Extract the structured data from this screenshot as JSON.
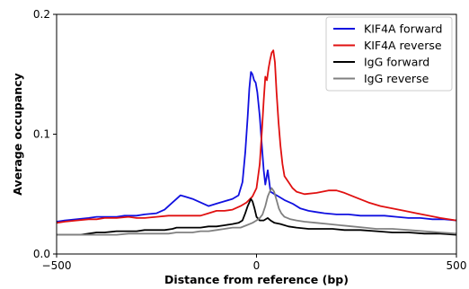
{
  "chart_data": {
    "type": "line",
    "title": "",
    "xlabel": "Distance from reference (bp)",
    "ylabel": "Average occupancy",
    "xlim": [
      -500,
      500
    ],
    "ylim": [
      0,
      0.2
    ],
    "x_ticks": [
      -500,
      0,
      500
    ],
    "x_tick_labels": [
      "−500",
      "0",
      "500"
    ],
    "y_ticks": [
      0,
      0.1,
      0.2
    ],
    "y_tick_labels": [
      "0.0",
      "0.1",
      "0.2"
    ],
    "grid": false,
    "legend_position": "top-right",
    "series": [
      {
        "name": "KIF4A forward",
        "color": "#1010e0",
        "points": [
          [
            -500,
            0.027
          ],
          [
            -480,
            0.028
          ],
          [
            -450,
            0.029
          ],
          [
            -420,
            0.03
          ],
          [
            -400,
            0.031
          ],
          [
            -380,
            0.031
          ],
          [
            -350,
            0.031
          ],
          [
            -330,
            0.032
          ],
          [
            -300,
            0.032
          ],
          [
            -280,
            0.033
          ],
          [
            -250,
            0.034
          ],
          [
            -230,
            0.037
          ],
          [
            -210,
            0.043
          ],
          [
            -200,
            0.046
          ],
          [
            -190,
            0.049
          ],
          [
            -180,
            0.048
          ],
          [
            -160,
            0.046
          ],
          [
            -140,
            0.043
          ],
          [
            -120,
            0.04
          ],
          [
            -100,
            0.042
          ],
          [
            -80,
            0.044
          ],
          [
            -60,
            0.046
          ],
          [
            -45,
            0.049
          ],
          [
            -35,
            0.06
          ],
          [
            -28,
            0.085
          ],
          [
            -22,
            0.115
          ],
          [
            -18,
            0.138
          ],
          [
            -14,
            0.152
          ],
          [
            -10,
            0.15
          ],
          [
            -6,
            0.145
          ],
          [
            -2,
            0.143
          ],
          [
            2,
            0.135
          ],
          [
            8,
            0.115
          ],
          [
            14,
            0.088
          ],
          [
            18,
            0.07
          ],
          [
            22,
            0.058
          ],
          [
            28,
            0.07
          ],
          [
            35,
            0.052
          ],
          [
            45,
            0.05
          ],
          [
            55,
            0.048
          ],
          [
            70,
            0.045
          ],
          [
            90,
            0.042
          ],
          [
            110,
            0.038
          ],
          [
            130,
            0.036
          ],
          [
            150,
            0.035
          ],
          [
            170,
            0.034
          ],
          [
            200,
            0.033
          ],
          [
            230,
            0.033
          ],
          [
            260,
            0.032
          ],
          [
            290,
            0.032
          ],
          [
            320,
            0.032
          ],
          [
            350,
            0.031
          ],
          [
            380,
            0.03
          ],
          [
            410,
            0.03
          ],
          [
            440,
            0.029
          ],
          [
            470,
            0.029
          ],
          [
            500,
            0.028
          ]
        ]
      },
      {
        "name": "KIF4A reverse",
        "color": "#e01010",
        "points": [
          [
            -500,
            0.026
          ],
          [
            -480,
            0.027
          ],
          [
            -450,
            0.028
          ],
          [
            -420,
            0.029
          ],
          [
            -400,
            0.029
          ],
          [
            -380,
            0.03
          ],
          [
            -350,
            0.03
          ],
          [
            -320,
            0.031
          ],
          [
            -300,
            0.03
          ],
          [
            -280,
            0.03
          ],
          [
            -250,
            0.031
          ],
          [
            -220,
            0.032
          ],
          [
            -200,
            0.032
          ],
          [
            -180,
            0.032
          ],
          [
            -160,
            0.032
          ],
          [
            -140,
            0.032
          ],
          [
            -120,
            0.034
          ],
          [
            -100,
            0.036
          ],
          [
            -80,
            0.036
          ],
          [
            -60,
            0.037
          ],
          [
            -40,
            0.04
          ],
          [
            -25,
            0.043
          ],
          [
            -10,
            0.048
          ],
          [
            0,
            0.055
          ],
          [
            8,
            0.075
          ],
          [
            14,
            0.105
          ],
          [
            18,
            0.128
          ],
          [
            22,
            0.148
          ],
          [
            26,
            0.145
          ],
          [
            30,
            0.155
          ],
          [
            34,
            0.162
          ],
          [
            38,
            0.168
          ],
          [
            42,
            0.17
          ],
          [
            46,
            0.16
          ],
          [
            50,
            0.135
          ],
          [
            55,
            0.11
          ],
          [
            60,
            0.09
          ],
          [
            65,
            0.075
          ],
          [
            70,
            0.065
          ],
          [
            80,
            0.06
          ],
          [
            90,
            0.055
          ],
          [
            100,
            0.052
          ],
          [
            120,
            0.05
          ],
          [
            150,
            0.051
          ],
          [
            180,
            0.053
          ],
          [
            200,
            0.053
          ],
          [
            220,
            0.051
          ],
          [
            250,
            0.047
          ],
          [
            280,
            0.043
          ],
          [
            310,
            0.04
          ],
          [
            340,
            0.038
          ],
          [
            370,
            0.036
          ],
          [
            400,
            0.034
          ],
          [
            430,
            0.032
          ],
          [
            460,
            0.03
          ],
          [
            500,
            0.028
          ]
        ]
      },
      {
        "name": "IgG forward",
        "color": "#000000",
        "points": [
          [
            -500,
            0.016
          ],
          [
            -470,
            0.016
          ],
          [
            -440,
            0.016
          ],
          [
            -420,
            0.017
          ],
          [
            -400,
            0.018
          ],
          [
            -380,
            0.018
          ],
          [
            -350,
            0.019
          ],
          [
            -320,
            0.019
          ],
          [
            -300,
            0.019
          ],
          [
            -280,
            0.02
          ],
          [
            -250,
            0.02
          ],
          [
            -230,
            0.02
          ],
          [
            -210,
            0.021
          ],
          [
            -200,
            0.022
          ],
          [
            -180,
            0.022
          ],
          [
            -160,
            0.022
          ],
          [
            -140,
            0.022
          ],
          [
            -120,
            0.023
          ],
          [
            -100,
            0.023
          ],
          [
            -80,
            0.024
          ],
          [
            -60,
            0.025
          ],
          [
            -45,
            0.026
          ],
          [
            -35,
            0.028
          ],
          [
            -28,
            0.034
          ],
          [
            -22,
            0.04
          ],
          [
            -18,
            0.043
          ],
          [
            -14,
            0.046
          ],
          [
            -10,
            0.044
          ],
          [
            -5,
            0.038
          ],
          [
            0,
            0.031
          ],
          [
            8,
            0.028
          ],
          [
            18,
            0.028
          ],
          [
            28,
            0.03
          ],
          [
            35,
            0.028
          ],
          [
            45,
            0.026
          ],
          [
            60,
            0.025
          ],
          [
            80,
            0.023
          ],
          [
            100,
            0.022
          ],
          [
            130,
            0.021
          ],
          [
            160,
            0.021
          ],
          [
            190,
            0.021
          ],
          [
            220,
            0.02
          ],
          [
            260,
            0.02
          ],
          [
            300,
            0.019
          ],
          [
            340,
            0.018
          ],
          [
            380,
            0.018
          ],
          [
            420,
            0.017
          ],
          [
            460,
            0.017
          ],
          [
            500,
            0.016
          ]
        ]
      },
      {
        "name": "IgG reverse",
        "color": "#808080",
        "points": [
          [
            -500,
            0.016
          ],
          [
            -470,
            0.016
          ],
          [
            -440,
            0.016
          ],
          [
            -410,
            0.016
          ],
          [
            -380,
            0.016
          ],
          [
            -350,
            0.016
          ],
          [
            -320,
            0.017
          ],
          [
            -300,
            0.017
          ],
          [
            -280,
            0.017
          ],
          [
            -250,
            0.017
          ],
          [
            -220,
            0.017
          ],
          [
            -200,
            0.018
          ],
          [
            -180,
            0.018
          ],
          [
            -160,
            0.018
          ],
          [
            -140,
            0.019
          ],
          [
            -120,
            0.019
          ],
          [
            -100,
            0.02
          ],
          [
            -80,
            0.021
          ],
          [
            -60,
            0.022
          ],
          [
            -40,
            0.022
          ],
          [
            -25,
            0.024
          ],
          [
            -10,
            0.026
          ],
          [
            0,
            0.028
          ],
          [
            8,
            0.03
          ],
          [
            15,
            0.033
          ],
          [
            22,
            0.04
          ],
          [
            28,
            0.048
          ],
          [
            33,
            0.052
          ],
          [
            38,
            0.055
          ],
          [
            44,
            0.052
          ],
          [
            50,
            0.045
          ],
          [
            56,
            0.038
          ],
          [
            62,
            0.034
          ],
          [
            70,
            0.031
          ],
          [
            85,
            0.029
          ],
          [
            100,
            0.028
          ],
          [
            120,
            0.027
          ],
          [
            150,
            0.026
          ],
          [
            180,
            0.025
          ],
          [
            210,
            0.024
          ],
          [
            240,
            0.023
          ],
          [
            270,
            0.022
          ],
          [
            300,
            0.021
          ],
          [
            340,
            0.021
          ],
          [
            380,
            0.02
          ],
          [
            420,
            0.019
          ],
          [
            460,
            0.018
          ],
          [
            500,
            0.017
          ]
        ]
      }
    ]
  }
}
